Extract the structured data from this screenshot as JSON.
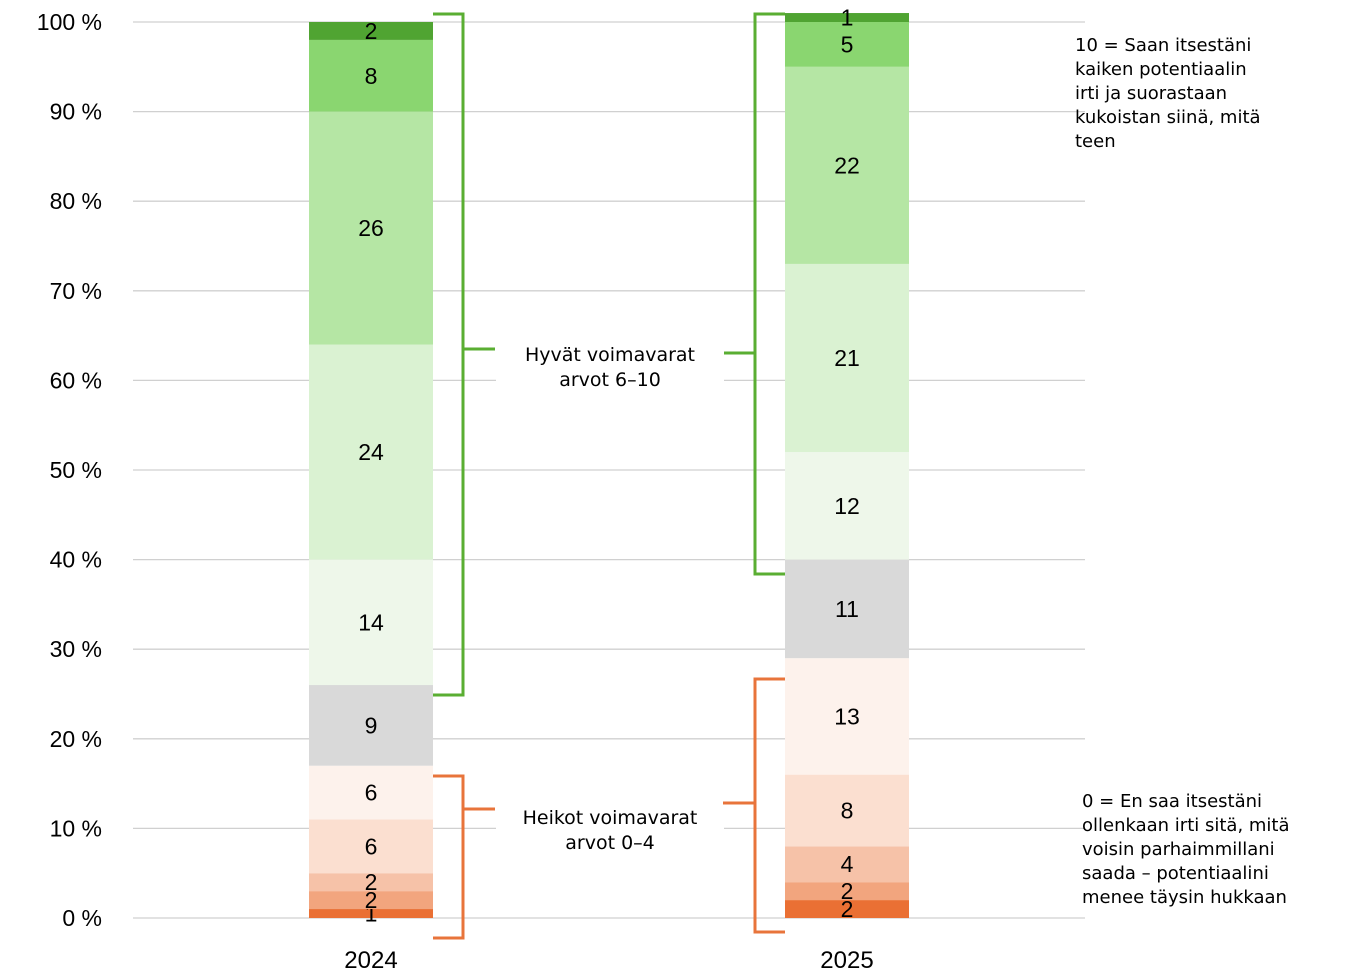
{
  "chart_data": {
    "type": "bar",
    "stacked": true,
    "percent": true,
    "categories": [
      "2024",
      "2025"
    ],
    "y_ticks": [
      "0 %",
      "10 %",
      "20 %",
      "30 %",
      "40 %",
      "50 %",
      "60 %",
      "70 %",
      "80 %",
      "90 %",
      "100 %"
    ],
    "ylim": [
      0,
      100
    ],
    "grid": true,
    "segments_bottom_to_top": [
      {
        "score": 0,
        "color": "#EA7034",
        "values": [
          1,
          2
        ]
      },
      {
        "score": 1,
        "color": "#F2A57E",
        "values": [
          2,
          2
        ]
      },
      {
        "score": 2,
        "color": "#F6C2A8",
        "values": [
          2,
          4
        ]
      },
      {
        "score": 3,
        "color": "#FBDFD0",
        "values": [
          6,
          8
        ]
      },
      {
        "score": 4,
        "color": "#FDF2EC",
        "values": [
          6,
          13
        ]
      },
      {
        "score": 5,
        "color": "#D9D9D9",
        "values": [
          9,
          11
        ]
      },
      {
        "score": 6,
        "color": "#EEF7EA",
        "values": [
          14,
          12
        ]
      },
      {
        "score": 7,
        "color": "#DAF2D2",
        "values": [
          24,
          21
        ]
      },
      {
        "score": 8,
        "color": "#B5E6A4",
        "values": [
          26,
          22
        ]
      },
      {
        "score": 9,
        "color": "#8AD670",
        "values": [
          8,
          5
        ]
      },
      {
        "score": 10,
        "color": "#50A432",
        "values": [
          2,
          1
        ]
      }
    ],
    "brackets": {
      "good": {
        "color": "#5AAE32",
        "line1": "Hyvät voimavarat",
        "line2": "arvot 6–10"
      },
      "weak": {
        "color": "#E8743B",
        "line1": "Heikot voimavarat",
        "line2": "arvot 0–4"
      }
    },
    "annotations": {
      "top": [
        "10 = Saan itsestäni",
        "kaiken potentiaalin",
        "irti ja suorastaan",
        "kukoistan siinä, mitä",
        "teen"
      ],
      "bottom": [
        "0 = En saa itsestäni",
        "ollenkaan irti sitä, mitä",
        "voisin parhaimmillani",
        "saada – potentiaalini",
        "menee täysin hukkaan"
      ]
    }
  }
}
